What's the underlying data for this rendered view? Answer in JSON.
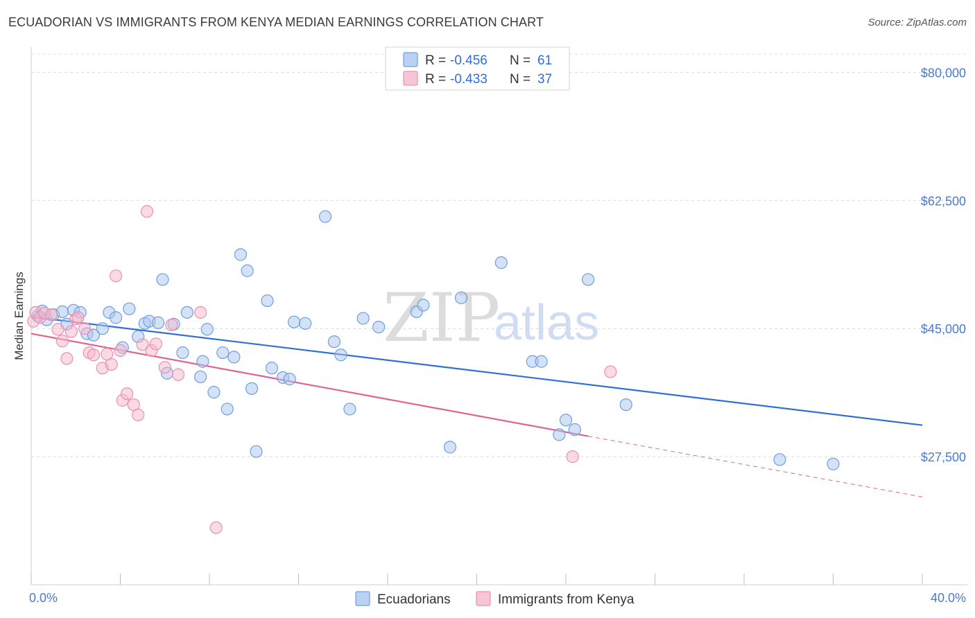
{
  "header": {
    "title": "ECUADORIAN VS IMMIGRANTS FROM KENYA MEDIAN EARNINGS CORRELATION CHART",
    "source": "Source: ZipAtlas.com"
  },
  "watermark": {
    "zip": "ZIP",
    "atlas": "atlas"
  },
  "legend_top": {
    "r_label": "R =",
    "n_label": "N =",
    "rows": [
      {
        "r": "-0.456",
        "n": "61",
        "color": "#a9c6f0"
      },
      {
        "r": "-0.433",
        "n": "37",
        "color": "#f5b8cc"
      }
    ]
  },
  "chart_data": {
    "type": "scatter",
    "title": "ECUADORIAN VS IMMIGRANTS FROM KENYA MEDIAN EARNINGS CORRELATION CHART",
    "xlabel": "",
    "ylabel": "Median Earnings",
    "xlim": [
      0,
      40
    ],
    "ylim": [
      10000,
      82500
    ],
    "x_tick_labels": [
      "0.0%",
      "40.0%"
    ],
    "y_ticks": [
      {
        "value": 80000,
        "label": "$80,000"
      },
      {
        "value": 62500,
        "label": "$62,500"
      },
      {
        "value": 45000,
        "label": "$45,000"
      },
      {
        "value": 27500,
        "label": "$27,500"
      }
    ],
    "grid": true,
    "legend_position": "bottom",
    "series": [
      {
        "name": "Ecuadorians",
        "color": "#a9c6f0",
        "stroke": "#6f9ee0",
        "trend": {
          "x0": 0,
          "y0": 46600,
          "x1": 40,
          "y1": 31800,
          "color": "#2f6fd6"
        },
        "points": [
          [
            0.3,
            46700
          ],
          [
            0.5,
            47400
          ],
          [
            0.7,
            46200
          ],
          [
            1.0,
            46900
          ],
          [
            1.4,
            47300
          ],
          [
            1.6,
            45600
          ],
          [
            1.9,
            47500
          ],
          [
            2.2,
            47200
          ],
          [
            2.5,
            44300
          ],
          [
            2.8,
            44100
          ],
          [
            3.2,
            45000
          ],
          [
            3.5,
            47200
          ],
          [
            3.8,
            46500
          ],
          [
            4.1,
            42400
          ],
          [
            4.4,
            47700
          ],
          [
            4.8,
            43900
          ],
          [
            5.1,
            45700
          ],
          [
            5.3,
            46000
          ],
          [
            5.7,
            45800
          ],
          [
            5.9,
            51700
          ],
          [
            6.1,
            38900
          ],
          [
            6.4,
            45600
          ],
          [
            6.8,
            41700
          ],
          [
            7.0,
            47200
          ],
          [
            7.6,
            38400
          ],
          [
            7.7,
            40500
          ],
          [
            7.9,
            44900
          ],
          [
            8.2,
            36300
          ],
          [
            8.6,
            41700
          ],
          [
            8.8,
            34000
          ],
          [
            9.1,
            41100
          ],
          [
            9.4,
            55100
          ],
          [
            9.7,
            52900
          ],
          [
            9.9,
            36800
          ],
          [
            10.1,
            28200
          ],
          [
            10.6,
            48800
          ],
          [
            10.8,
            39600
          ],
          [
            11.3,
            38300
          ],
          [
            11.6,
            38100
          ],
          [
            11.8,
            45900
          ],
          [
            12.3,
            45700
          ],
          [
            13.2,
            60300
          ],
          [
            13.6,
            43200
          ],
          [
            13.9,
            41400
          ],
          [
            14.3,
            34000
          ],
          [
            14.9,
            46400
          ],
          [
            15.6,
            45200
          ],
          [
            17.3,
            47300
          ],
          [
            17.6,
            48200
          ],
          [
            18.8,
            28800
          ],
          [
            19.3,
            49200
          ],
          [
            21.1,
            54000
          ],
          [
            22.5,
            40500
          ],
          [
            22.9,
            40500
          ],
          [
            23.7,
            30500
          ],
          [
            24.0,
            32500
          ],
          [
            24.4,
            31200
          ],
          [
            25.0,
            51700
          ],
          [
            26.7,
            34600
          ],
          [
            33.6,
            27100
          ],
          [
            36.0,
            26500
          ]
        ]
      },
      {
        "name": "Immigrants from Kenya",
        "color": "#f5b8cc",
        "stroke": "#ec8fae",
        "trend": {
          "x0": 0,
          "y0": 44300,
          "x1": 25.0,
          "y1": 30300,
          "dash_x1": 40,
          "dash_y1": 22000,
          "color": "#e2628f"
        },
        "points": [
          [
            0.1,
            46000
          ],
          [
            0.2,
            47200
          ],
          [
            0.4,
            46500
          ],
          [
            0.6,
            47100
          ],
          [
            0.9,
            46900
          ],
          [
            1.2,
            44900
          ],
          [
            1.4,
            43300
          ],
          [
            1.6,
            40900
          ],
          [
            1.8,
            44600
          ],
          [
            2.0,
            46300
          ],
          [
            2.1,
            46500
          ],
          [
            2.4,
            45000
          ],
          [
            2.6,
            41700
          ],
          [
            2.8,
            41400
          ],
          [
            3.2,
            39600
          ],
          [
            3.4,
            41500
          ],
          [
            3.6,
            40100
          ],
          [
            3.8,
            52200
          ],
          [
            4.0,
            42000
          ],
          [
            4.1,
            35200
          ],
          [
            4.3,
            36100
          ],
          [
            4.6,
            34600
          ],
          [
            4.8,
            33200
          ],
          [
            5.0,
            42800
          ],
          [
            5.2,
            61000
          ],
          [
            5.4,
            42000
          ],
          [
            5.6,
            42900
          ],
          [
            6.0,
            39700
          ],
          [
            6.3,
            45500
          ],
          [
            6.6,
            38700
          ],
          [
            7.6,
            47200
          ],
          [
            8.3,
            17800
          ],
          [
            24.3,
            27500
          ],
          [
            26.0,
            39100
          ]
        ]
      }
    ]
  },
  "legend_bottom": {
    "items": [
      {
        "label": "Ecuadorians",
        "color": "#a9c6f0",
        "stroke": "#6f9ee0"
      },
      {
        "label": "Immigrants from Kenya",
        "color": "#f5b8cc",
        "stroke": "#ec8fae"
      }
    ]
  }
}
